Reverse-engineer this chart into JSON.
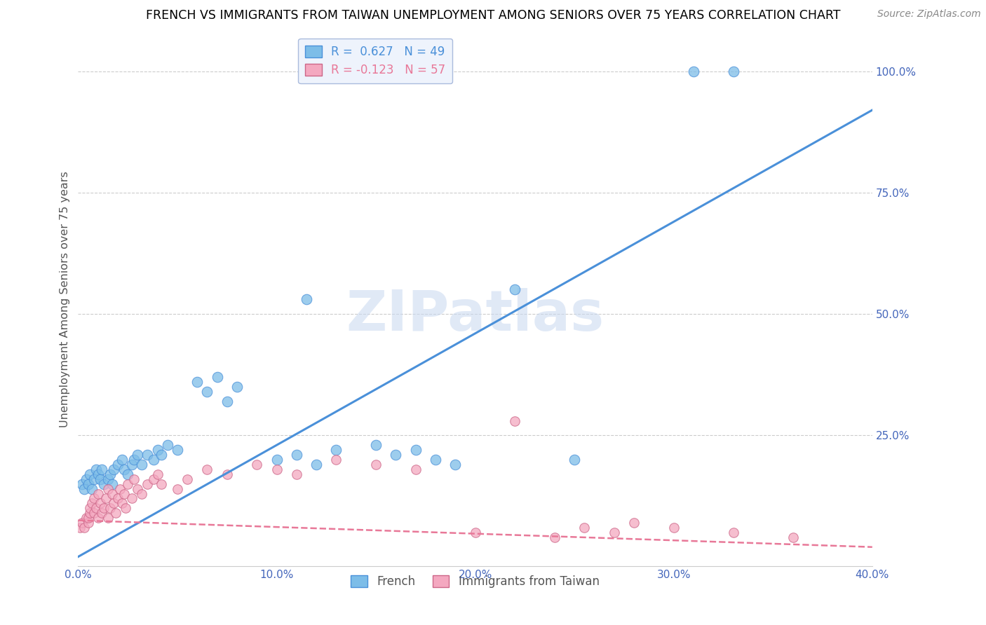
{
  "title": "FRENCH VS IMMIGRANTS FROM TAIWAN UNEMPLOYMENT AMONG SENIORS OVER 75 YEARS CORRELATION CHART",
  "source": "Source: ZipAtlas.com",
  "ylabel": "Unemployment Among Seniors over 75 years",
  "xlim": [
    0.0,
    0.4
  ],
  "ylim": [
    -0.02,
    1.08
  ],
  "xticks": [
    0.0,
    0.1,
    0.2,
    0.3,
    0.4
  ],
  "xticklabels": [
    "0.0%",
    "10.0%",
    "20.0%",
    "30.0%",
    "40.0%"
  ],
  "ytick_right_labels": [
    "100.0%",
    "75.0%",
    "50.0%",
    "25.0%"
  ],
  "ytick_right_values": [
    1.0,
    0.75,
    0.5,
    0.25
  ],
  "french_R": 0.627,
  "french_N": 49,
  "taiwan_R": -0.123,
  "taiwan_N": 57,
  "french_color": "#7dbde8",
  "taiwan_color": "#f4a8c0",
  "french_line_color": "#4a90d9",
  "taiwan_line_color": "#e87898",
  "watermark": "ZIPatlas",
  "french_line_x0": 0.0,
  "french_line_y0": 0.0,
  "french_line_x1": 0.4,
  "french_line_y1": 0.92,
  "taiwan_line_x0": 0.0,
  "taiwan_line_y0": 0.075,
  "taiwan_line_x1": 0.4,
  "taiwan_line_y1": 0.02,
  "french_scatter_x": [
    0.002,
    0.003,
    0.004,
    0.005,
    0.006,
    0.007,
    0.008,
    0.009,
    0.01,
    0.011,
    0.012,
    0.013,
    0.015,
    0.016,
    0.017,
    0.018,
    0.02,
    0.022,
    0.023,
    0.025,
    0.027,
    0.028,
    0.03,
    0.032,
    0.035,
    0.038,
    0.04,
    0.042,
    0.045,
    0.05,
    0.06,
    0.065,
    0.07,
    0.075,
    0.08,
    0.1,
    0.11,
    0.115,
    0.12,
    0.13,
    0.15,
    0.16,
    0.17,
    0.18,
    0.19,
    0.22,
    0.25,
    0.31,
    0.33
  ],
  "french_scatter_y": [
    0.15,
    0.14,
    0.16,
    0.15,
    0.17,
    0.14,
    0.16,
    0.18,
    0.17,
    0.16,
    0.18,
    0.15,
    0.16,
    0.17,
    0.15,
    0.18,
    0.19,
    0.2,
    0.18,
    0.17,
    0.19,
    0.2,
    0.21,
    0.19,
    0.21,
    0.2,
    0.22,
    0.21,
    0.23,
    0.22,
    0.36,
    0.34,
    0.37,
    0.32,
    0.35,
    0.2,
    0.21,
    0.53,
    0.19,
    0.22,
    0.23,
    0.21,
    0.22,
    0.2,
    0.19,
    0.55,
    0.2,
    1.0,
    1.0
  ],
  "taiwan_scatter_x": [
    0.001,
    0.002,
    0.003,
    0.004,
    0.005,
    0.005,
    0.006,
    0.006,
    0.007,
    0.008,
    0.008,
    0.009,
    0.01,
    0.01,
    0.011,
    0.012,
    0.013,
    0.014,
    0.015,
    0.015,
    0.016,
    0.017,
    0.018,
    0.019,
    0.02,
    0.021,
    0.022,
    0.023,
    0.024,
    0.025,
    0.027,
    0.028,
    0.03,
    0.032,
    0.035,
    0.038,
    0.04,
    0.042,
    0.05,
    0.055,
    0.065,
    0.075,
    0.09,
    0.1,
    0.11,
    0.13,
    0.15,
    0.17,
    0.2,
    0.22,
    0.24,
    0.255,
    0.27,
    0.28,
    0.3,
    0.33,
    0.36
  ],
  "taiwan_scatter_y": [
    0.06,
    0.07,
    0.06,
    0.08,
    0.07,
    0.08,
    0.09,
    0.1,
    0.11,
    0.09,
    0.12,
    0.1,
    0.08,
    0.13,
    0.11,
    0.09,
    0.1,
    0.12,
    0.08,
    0.14,
    0.1,
    0.13,
    0.11,
    0.09,
    0.12,
    0.14,
    0.11,
    0.13,
    0.1,
    0.15,
    0.12,
    0.16,
    0.14,
    0.13,
    0.15,
    0.16,
    0.17,
    0.15,
    0.14,
    0.16,
    0.18,
    0.17,
    0.19,
    0.18,
    0.17,
    0.2,
    0.19,
    0.18,
    0.05,
    0.28,
    0.04,
    0.06,
    0.05,
    0.07,
    0.06,
    0.05,
    0.04
  ]
}
